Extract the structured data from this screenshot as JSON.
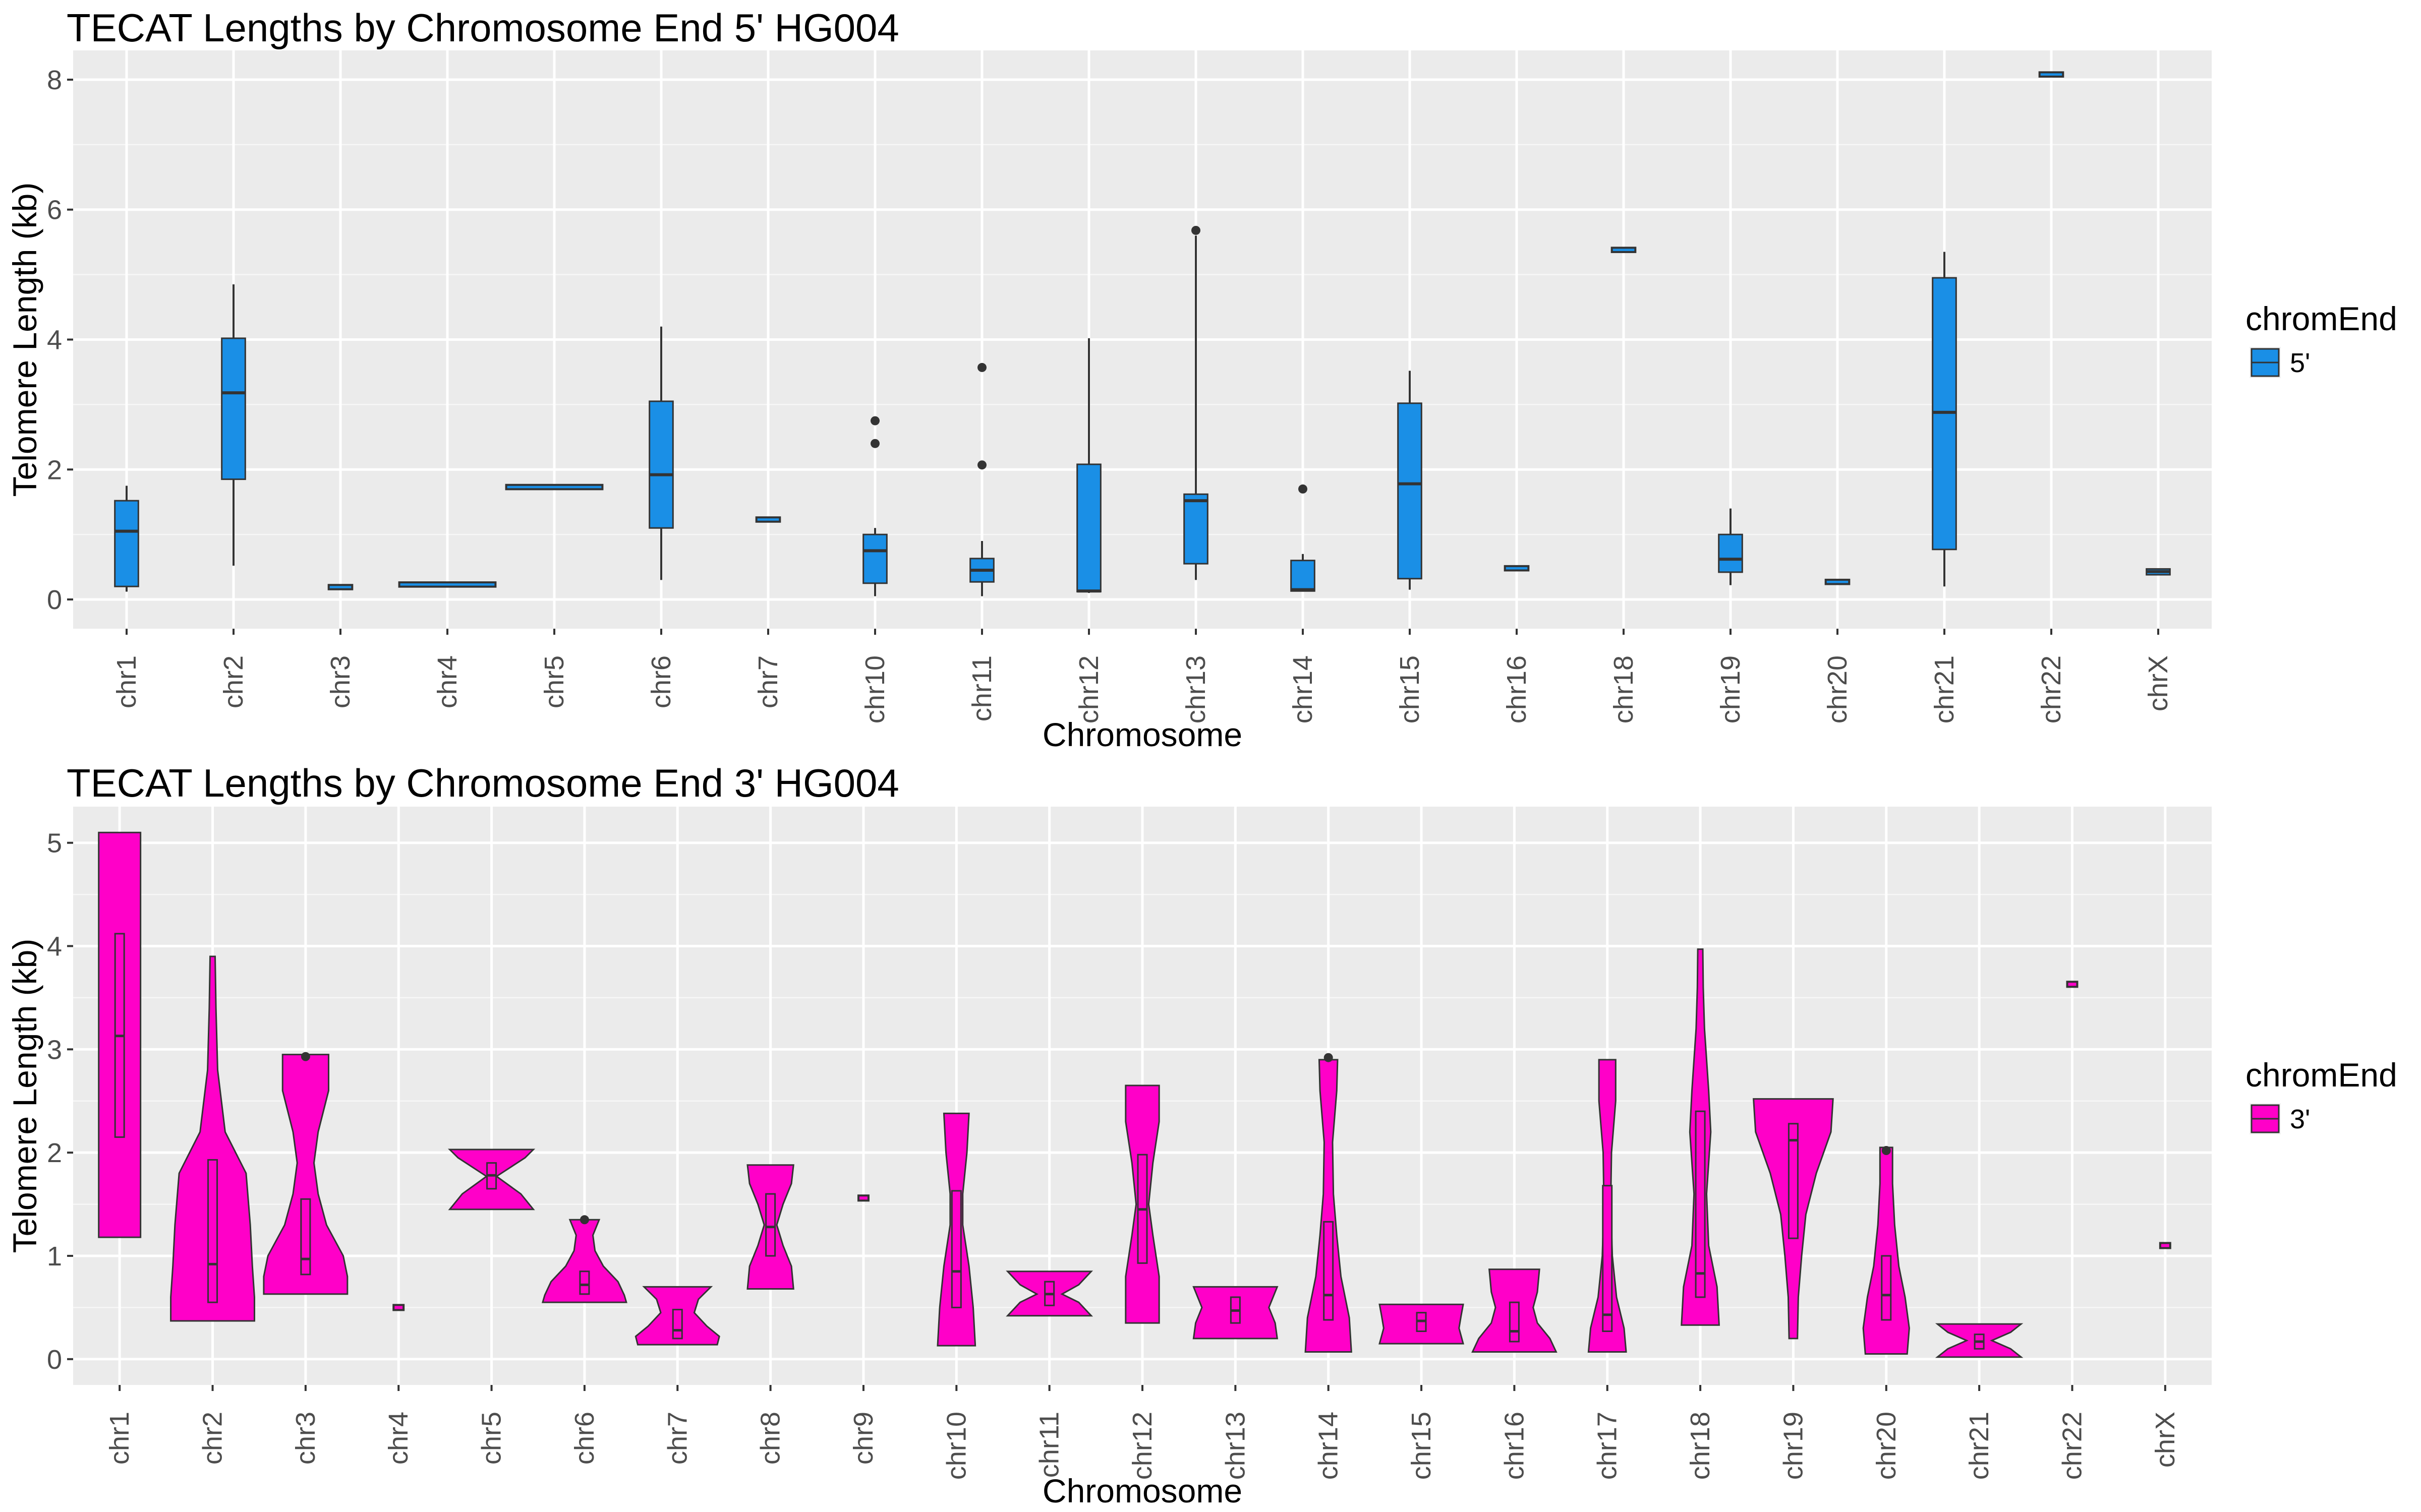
{
  "chart_data": [
    {
      "type": "box",
      "title": "TECAT Lengths by Chromosome End 5' HG004",
      "xlabel": "Chromosome",
      "ylabel": "Telomere Length (kb)",
      "ylim": [
        -0.45,
        8.45
      ],
      "yticks": [
        0,
        2,
        4,
        6,
        8
      ],
      "grid": true,
      "legend": {
        "title": "chromEnd",
        "label": "5'",
        "position": "right"
      },
      "fill_color": "#1a8fe6",
      "categories": [
        "chr1",
        "chr2",
        "chr3",
        "chr4",
        "chr5",
        "chr6",
        "chr7",
        "chr10",
        "chr11",
        "chr12",
        "chr13",
        "chr14",
        "chr15",
        "chr16",
        "chr18",
        "chr19",
        "chr20",
        "chr21",
        "chr22",
        "chrX"
      ],
      "boxes": [
        {
          "min": 0.12,
          "q1": 0.2,
          "median": 1.05,
          "q3": 1.52,
          "max": 1.75,
          "outliers": []
        },
        {
          "min": 0.52,
          "q1": 1.85,
          "median": 3.18,
          "q3": 4.02,
          "max": 4.85,
          "outliers": []
        },
        {
          "min": 0.18,
          "q1": 0.18,
          "median": 0.19,
          "q3": 0.2,
          "max": 0.2,
          "outliers": []
        },
        {
          "min": 0.22,
          "q1": 0.22,
          "median": 0.23,
          "q3": 0.24,
          "max": 0.24,
          "outliers": []
        },
        {
          "min": 1.72,
          "q1": 1.72,
          "median": 1.73,
          "q3": 1.74,
          "max": 1.74,
          "outliers": []
        },
        {
          "min": 0.3,
          "q1": 1.1,
          "median": 1.92,
          "q3": 3.05,
          "max": 4.2,
          "outliers": []
        },
        {
          "min": 1.22,
          "q1": 1.22,
          "median": 1.23,
          "q3": 1.24,
          "max": 1.24,
          "outliers": []
        },
        {
          "min": 0.05,
          "q1": 0.25,
          "median": 0.75,
          "q3": 1.0,
          "max": 1.1,
          "outliers": [
            2.4,
            2.75
          ]
        },
        {
          "min": 0.05,
          "q1": 0.27,
          "median": 0.45,
          "q3": 0.63,
          "max": 0.9,
          "outliers": [
            2.07,
            3.57
          ]
        },
        {
          "min": 0.1,
          "q1": 0.12,
          "median": 0.13,
          "q3": 2.08,
          "max": 4.02,
          "outliers": []
        },
        {
          "min": 0.3,
          "q1": 0.55,
          "median": 1.52,
          "q3": 1.62,
          "max": 5.6,
          "outliers": [
            5.68
          ]
        },
        {
          "min": 0.12,
          "q1": 0.13,
          "median": 0.15,
          "q3": 0.6,
          "max": 0.7,
          "outliers": [
            1.7
          ]
        },
        {
          "min": 0.15,
          "q1": 0.32,
          "median": 1.78,
          "q3": 3.02,
          "max": 3.52,
          "outliers": []
        },
        {
          "min": 0.47,
          "q1": 0.47,
          "median": 0.48,
          "q3": 0.49,
          "max": 0.49,
          "outliers": []
        },
        {
          "min": 5.37,
          "q1": 5.37,
          "median": 5.38,
          "q3": 5.39,
          "max": 5.39,
          "outliers": []
        },
        {
          "min": 0.22,
          "q1": 0.42,
          "median": 0.62,
          "q3": 1.0,
          "max": 1.4,
          "outliers": []
        },
        {
          "min": 0.26,
          "q1": 0.26,
          "median": 0.27,
          "q3": 0.28,
          "max": 0.28,
          "outliers": []
        },
        {
          "min": 0.2,
          "q1": 0.77,
          "median": 2.88,
          "q3": 4.95,
          "max": 5.35,
          "outliers": []
        },
        {
          "min": 8.07,
          "q1": 8.07,
          "median": 8.08,
          "q3": 8.09,
          "max": 8.09,
          "outliers": []
        },
        {
          "min": 0.38,
          "q1": 0.38,
          "median": 0.43,
          "q3": 0.47,
          "max": 0.47,
          "outliers": []
        }
      ]
    },
    {
      "type": "violin",
      "title": "TECAT Lengths by Chromosome End 3' HG004",
      "xlabel": "Chromosome",
      "ylabel": "Telomere Length (kb)",
      "ylim": [
        -0.25,
        5.35
      ],
      "yticks": [
        0,
        1,
        2,
        3,
        4,
        5
      ],
      "grid": true,
      "legend": {
        "title": "chromEnd",
        "label": "3'",
        "position": "right"
      },
      "fill_color": "#ff00c8",
      "categories": [
        "chr1",
        "chr2",
        "chr3",
        "chr4",
        "chr5",
        "chr6",
        "chr7",
        "chr8",
        "chr9",
        "chr10",
        "chr11",
        "chr12",
        "chr13",
        "chr14",
        "chr15",
        "chr16",
        "chr17",
        "chr18",
        "chr19",
        "chr20",
        "chr21",
        "chr22",
        "chrX"
      ],
      "violins": [
        {
          "profile": [
            [
              1.18,
              0.5
            ],
            [
              1.5,
              0.5
            ],
            [
              2.0,
              0.5
            ],
            [
              2.5,
              0.5
            ],
            [
              3.0,
              0.5
            ],
            [
              3.5,
              0.5
            ],
            [
              4.0,
              0.5
            ],
            [
              4.6,
              0.5
            ],
            [
              5.1,
              0.5
            ]
          ],
          "box": {
            "q1": 2.15,
            "median": 3.13,
            "q3": 4.12
          },
          "outliers": []
        },
        {
          "profile": [
            [
              0.37,
              1.0
            ],
            [
              0.6,
              1.0
            ],
            [
              0.9,
              0.95
            ],
            [
              1.3,
              0.9
            ],
            [
              1.8,
              0.8
            ],
            [
              2.2,
              0.3
            ],
            [
              2.8,
              0.12
            ],
            [
              3.4,
              0.08
            ],
            [
              3.9,
              0.06
            ]
          ],
          "box": {
            "q1": 0.55,
            "median": 0.92,
            "q3": 1.93
          },
          "outliers": []
        },
        {
          "profile": [
            [
              0.63,
              1.0
            ],
            [
              0.8,
              1.0
            ],
            [
              1.0,
              0.9
            ],
            [
              1.3,
              0.5
            ],
            [
              1.6,
              0.3
            ],
            [
              1.9,
              0.2
            ],
            [
              2.2,
              0.3
            ],
            [
              2.6,
              0.55
            ],
            [
              2.95,
              0.55
            ]
          ],
          "box": {
            "q1": 0.82,
            "median": 0.97,
            "q3": 1.55
          },
          "outliers": [
            2.93
          ]
        },
        {
          "profile": [
            [
              0.49,
              0.12
            ],
            [
              0.51,
              0.12
            ]
          ],
          "box": null,
          "outliers": []
        },
        {
          "profile": [
            [
              1.45,
              1.0
            ],
            [
              1.6,
              0.7
            ],
            [
              1.77,
              0.12
            ],
            [
              1.95,
              0.8
            ],
            [
              2.03,
              1.0
            ]
          ],
          "box": {
            "q1": 1.65,
            "median": 1.78,
            "q3": 1.9
          },
          "outliers": []
        },
        {
          "profile": [
            [
              0.55,
              1.0
            ],
            [
              0.62,
              0.95
            ],
            [
              0.75,
              0.8
            ],
            [
              0.9,
              0.45
            ],
            [
              1.05,
              0.25
            ],
            [
              1.2,
              0.2
            ],
            [
              1.35,
              0.35
            ]
          ],
          "box": {
            "q1": 0.63,
            "median": 0.72,
            "q3": 0.85
          },
          "outliers": [
            1.35
          ]
        },
        {
          "profile": [
            [
              0.14,
              0.95
            ],
            [
              0.22,
              1.0
            ],
            [
              0.32,
              0.7
            ],
            [
              0.45,
              0.4
            ],
            [
              0.58,
              0.5
            ],
            [
              0.7,
              0.8
            ]
          ],
          "box": {
            "q1": 0.2,
            "median": 0.28,
            "q3": 0.48
          },
          "outliers": []
        },
        {
          "profile": [
            [
              0.68,
              0.55
            ],
            [
              0.9,
              0.5
            ],
            [
              1.1,
              0.3
            ],
            [
              1.3,
              0.15
            ],
            [
              1.5,
              0.3
            ],
            [
              1.7,
              0.5
            ],
            [
              1.88,
              0.55
            ]
          ],
          "box": {
            "q1": 1.0,
            "median": 1.28,
            "q3": 1.6
          },
          "outliers": []
        },
        {
          "profile": [
            [
              1.55,
              0.12
            ],
            [
              1.57,
              0.12
            ]
          ],
          "box": null,
          "outliers": []
        },
        {
          "profile": [
            [
              0.13,
              0.45
            ],
            [
              0.5,
              0.4
            ],
            [
              0.9,
              0.3
            ],
            [
              1.3,
              0.15
            ],
            [
              1.6,
              0.15
            ],
            [
              2.0,
              0.25
            ],
            [
              2.38,
              0.3
            ]
          ],
          "box": {
            "q1": 0.5,
            "median": 0.85,
            "q3": 1.63
          },
          "outliers": []
        },
        {
          "profile": [
            [
              0.42,
              1.0
            ],
            [
              0.55,
              0.7
            ],
            [
              0.63,
              0.3
            ],
            [
              0.72,
              0.7
            ],
            [
              0.85,
              1.0
            ]
          ],
          "box": {
            "q1": 0.52,
            "median": 0.63,
            "q3": 0.75
          },
          "outliers": []
        },
        {
          "profile": [
            [
              0.35,
              0.4
            ],
            [
              0.8,
              0.4
            ],
            [
              1.2,
              0.25
            ],
            [
              1.5,
              0.15
            ],
            [
              1.9,
              0.25
            ],
            [
              2.3,
              0.4
            ],
            [
              2.65,
              0.4
            ]
          ],
          "box": {
            "q1": 0.93,
            "median": 1.45,
            "q3": 1.98
          },
          "outliers": []
        },
        {
          "profile": [
            [
              0.2,
              1.0
            ],
            [
              0.35,
              0.95
            ],
            [
              0.5,
              0.8
            ],
            [
              0.6,
              0.9
            ],
            [
              0.7,
              1.0
            ]
          ],
          "box": {
            "q1": 0.35,
            "median": 0.47,
            "q3": 0.6
          },
          "outliers": []
        },
        {
          "profile": [
            [
              0.07,
              0.55
            ],
            [
              0.4,
              0.5
            ],
            [
              0.8,
              0.3
            ],
            [
              1.2,
              0.2
            ],
            [
              1.6,
              0.12
            ],
            [
              2.1,
              0.1
            ],
            [
              2.6,
              0.2
            ],
            [
              2.9,
              0.22
            ]
          ],
          "box": {
            "q1": 0.38,
            "median": 0.62,
            "q3": 1.33
          },
          "outliers": [
            2.92
          ]
        },
        {
          "profile": [
            [
              0.15,
              1.0
            ],
            [
              0.3,
              0.9
            ],
            [
              0.42,
              0.95
            ],
            [
              0.53,
              1.0
            ]
          ],
          "box": {
            "q1": 0.27,
            "median": 0.37,
            "q3": 0.45
          },
          "outliers": []
        },
        {
          "profile": [
            [
              0.07,
              1.0
            ],
            [
              0.2,
              0.85
            ],
            [
              0.35,
              0.55
            ],
            [
              0.5,
              0.45
            ],
            [
              0.65,
              0.55
            ],
            [
              0.87,
              0.6
            ]
          ],
          "box": {
            "q1": 0.17,
            "median": 0.27,
            "q3": 0.55
          },
          "outliers": []
        },
        {
          "profile": [
            [
              0.07,
              0.45
            ],
            [
              0.3,
              0.4
            ],
            [
              0.6,
              0.22
            ],
            [
              1.0,
              0.12
            ],
            [
              1.5,
              0.08
            ],
            [
              2.0,
              0.1
            ],
            [
              2.5,
              0.2
            ],
            [
              2.9,
              0.2
            ]
          ],
          "box": {
            "q1": 0.27,
            "median": 0.43,
            "q3": 1.68
          },
          "outliers": []
        },
        {
          "profile": [
            [
              0.33,
              0.45
            ],
            [
              0.7,
              0.4
            ],
            [
              1.1,
              0.2
            ],
            [
              1.6,
              0.15
            ],
            [
              2.2,
              0.25
            ],
            [
              2.6,
              0.2
            ],
            [
              3.2,
              0.1
            ],
            [
              3.6,
              0.07
            ],
            [
              3.97,
              0.06
            ]
          ],
          "box": {
            "q1": 0.6,
            "median": 0.83,
            "q3": 2.4
          },
          "outliers": []
        },
        {
          "profile": [
            [
              0.2,
              0.1
            ],
            [
              0.6,
              0.12
            ],
            [
              1.0,
              0.2
            ],
            [
              1.4,
              0.3
            ],
            [
              1.8,
              0.55
            ],
            [
              2.2,
              0.9
            ],
            [
              2.52,
              0.95
            ]
          ],
          "box": {
            "q1": 1.17,
            "median": 2.12,
            "q3": 2.28
          },
          "outliers": []
        },
        {
          "profile": [
            [
              0.05,
              0.5
            ],
            [
              0.3,
              0.55
            ],
            [
              0.6,
              0.45
            ],
            [
              0.9,
              0.3
            ],
            [
              1.3,
              0.2
            ],
            [
              1.7,
              0.15
            ],
            [
              2.05,
              0.15
            ]
          ],
          "box": {
            "q1": 0.38,
            "median": 0.62,
            "q3": 1.0
          },
          "outliers": [
            2.02
          ]
        },
        {
          "profile": [
            [
              0.02,
              1.0
            ],
            [
              0.1,
              0.75
            ],
            [
              0.18,
              0.3
            ],
            [
              0.26,
              0.75
            ],
            [
              0.34,
              1.0
            ]
          ],
          "box": {
            "q1": 0.1,
            "median": 0.17,
            "q3": 0.24
          },
          "outliers": []
        },
        {
          "profile": [
            [
              3.62,
              0.12
            ],
            [
              3.64,
              0.12
            ]
          ],
          "box": null,
          "outliers": []
        },
        {
          "profile": [
            [
              1.09,
              0.12
            ],
            [
              1.11,
              0.12
            ]
          ],
          "box": null,
          "outliers": []
        }
      ]
    }
  ]
}
